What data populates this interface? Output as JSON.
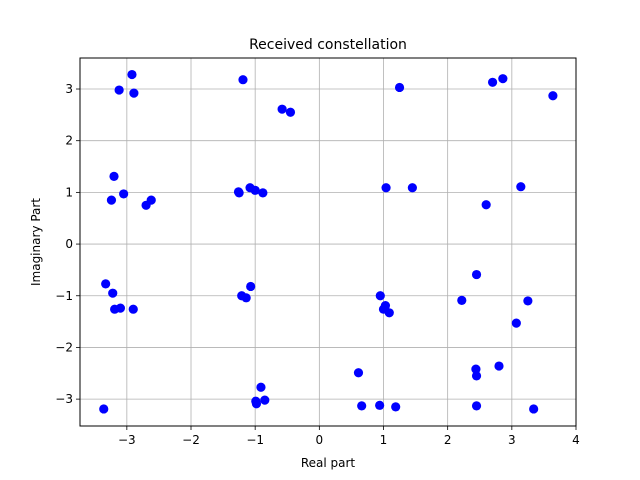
{
  "chart_data": {
    "type": "scatter",
    "title": "Received constellation",
    "xlabel": "Real part",
    "ylabel": "Imaginary Part",
    "xlim": [
      -3.73,
      4.0
    ],
    "ylim": [
      -3.52,
      3.6
    ],
    "xticks": [
      -3,
      -2,
      -1,
      0,
      1,
      2,
      3,
      4
    ],
    "yticks": [
      -3,
      -2,
      -1,
      0,
      1,
      2,
      3
    ],
    "grid": true,
    "marker_color": "#0000ff",
    "series": [
      {
        "points": [
          {
            "x": -2.92,
            "y": 3.28
          },
          {
            "x": -3.12,
            "y": 2.98
          },
          {
            "x": -2.89,
            "y": 2.92
          },
          {
            "x": -1.19,
            "y": 3.18
          },
          {
            "x": -0.58,
            "y": 2.61
          },
          {
            "x": -0.45,
            "y": 2.55
          },
          {
            "x": 1.25,
            "y": 3.03
          },
          {
            "x": 2.7,
            "y": 3.13
          },
          {
            "x": 2.86,
            "y": 3.2
          },
          {
            "x": 3.64,
            "y": 2.87
          },
          {
            "x": -3.2,
            "y": 1.31
          },
          {
            "x": -3.05,
            "y": 0.97
          },
          {
            "x": -3.24,
            "y": 0.85
          },
          {
            "x": -2.62,
            "y": 0.85
          },
          {
            "x": -2.7,
            "y": 0.75
          },
          {
            "x": -1.26,
            "y": 1.01
          },
          {
            "x": -1.08,
            "y": 1.09
          },
          {
            "x": -1.0,
            "y": 1.04
          },
          {
            "x": -0.88,
            "y": 0.99
          },
          {
            "x": -1.25,
            "y": 0.99
          },
          {
            "x": 1.04,
            "y": 1.09
          },
          {
            "x": 1.45,
            "y": 1.09
          },
          {
            "x": 3.14,
            "y": 1.11
          },
          {
            "x": 2.6,
            "y": 0.76
          },
          {
            "x": -3.33,
            "y": -0.77
          },
          {
            "x": -3.22,
            "y": -0.95
          },
          {
            "x": -3.19,
            "y": -1.26
          },
          {
            "x": -3.1,
            "y": -1.24
          },
          {
            "x": -2.9,
            "y": -1.26
          },
          {
            "x": -1.07,
            "y": -0.82
          },
          {
            "x": -1.21,
            "y": -1.0
          },
          {
            "x": -1.14,
            "y": -1.04
          },
          {
            "x": 0.95,
            "y": -1.0
          },
          {
            "x": 1.03,
            "y": -1.19
          },
          {
            "x": 1.0,
            "y": -1.26
          },
          {
            "x": 1.09,
            "y": -1.33
          },
          {
            "x": 2.45,
            "y": -0.59
          },
          {
            "x": 2.22,
            "y": -1.09
          },
          {
            "x": 3.25,
            "y": -1.1
          },
          {
            "x": 3.07,
            "y": -1.53
          },
          {
            "x": -3.36,
            "y": -3.19
          },
          {
            "x": -0.91,
            "y": -2.77
          },
          {
            "x": -0.99,
            "y": -3.04
          },
          {
            "x": -0.98,
            "y": -3.09
          },
          {
            "x": -0.85,
            "y": -3.02
          },
          {
            "x": 0.61,
            "y": -2.49
          },
          {
            "x": 0.66,
            "y": -3.13
          },
          {
            "x": 0.94,
            "y": -3.12
          },
          {
            "x": 1.19,
            "y": -3.15
          },
          {
            "x": 2.44,
            "y": -2.42
          },
          {
            "x": 2.45,
            "y": -2.55
          },
          {
            "x": 2.8,
            "y": -2.36
          },
          {
            "x": 2.45,
            "y": -3.13
          },
          {
            "x": 3.34,
            "y": -3.19
          }
        ]
      }
    ]
  }
}
